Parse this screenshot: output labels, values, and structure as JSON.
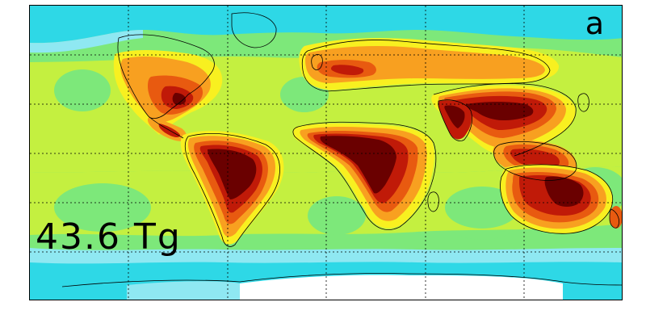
{
  "panel_label": "a",
  "total_label": "43.6 Tg",
  "colors": {
    "ocean_cyan": "#2ed8e6",
    "light_cyan": "#8fe8f2",
    "light_green": "#7de87a",
    "yellow_green": "#c4f040",
    "yellow": "#f8f020",
    "orange": "#f8a020",
    "red_orange": "#e85a10",
    "red": "#c01a08",
    "dark_red": "#6a0000",
    "white": "#ffffff",
    "coast": "#000000",
    "grid": "#000000"
  },
  "legend_levels_shown": [
    "cyan",
    "light-green",
    "yellow-green",
    "yellow",
    "orange",
    "red-orange",
    "red",
    "dark-red"
  ]
}
